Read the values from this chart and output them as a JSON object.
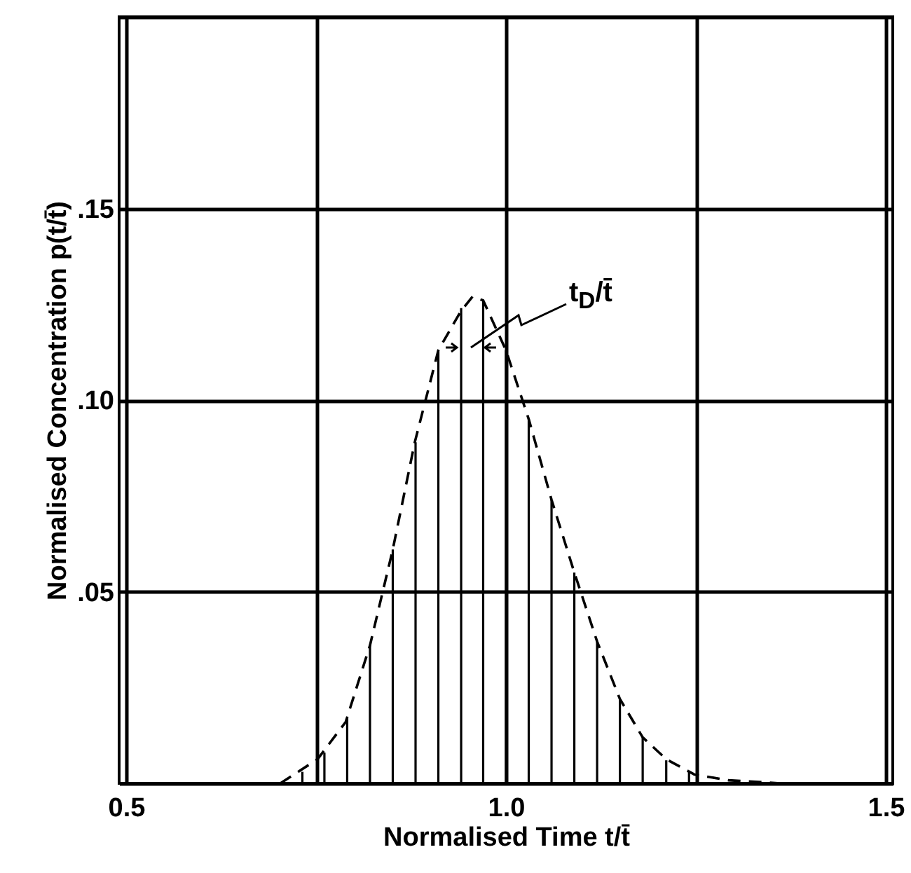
{
  "chart_data": {
    "type": "line",
    "xlabel": "Normalised Time t/t̄",
    "ylabel": "Normalised Concentration p(t/t̄)",
    "xlim": [
      0.5,
      1.5
    ],
    "ylim": [
      0,
      0.2
    ],
    "xticks": [
      0.5,
      {
        "value": 0.75,
        "label": null
      },
      {
        "value": 1,
        "label": "1.0"
      },
      {
        "value": 1.25,
        "label": null
      },
      1.5
    ],
    "yticks": [
      {
        "value": 0,
        "label": null
      },
      {
        "value": 0.05,
        "label": ".05"
      },
      {
        "value": 0.1,
        "label": ".10"
      },
      {
        "value": 0.15,
        "label": ".15"
      },
      {
        "value": 0.2,
        "label": null
      }
    ],
    "grid": true,
    "line_style": "dashed",
    "series": [
      {
        "color": "#000000",
        "x": [
          0.703,
          0.752,
          0.789,
          0.821,
          0.851,
          0.88,
          0.911,
          0.94,
          0.956,
          0.97,
          1.0,
          1.03,
          1.06,
          1.09,
          1.12,
          1.15,
          1.18,
          1.211,
          1.248,
          1.293,
          1.361
        ],
        "values": [
          0,
          0.0063,
          0.016,
          0.036,
          0.061,
          0.089,
          0.113,
          0.123,
          0.127,
          0.126,
          0.113,
          0.095,
          0.074,
          0.055,
          0.037,
          0.022,
          0.012,
          0.0063,
          0.0023,
          0.0008,
          0
        ]
      },
      {
        "type": "bar",
        "color": "#000000",
        "x": [
          0.732,
          0.761,
          0.791,
          0.821,
          0.851,
          0.881,
          0.911,
          0.941,
          0.97,
          1.0,
          1.03,
          1.06,
          1.09,
          1.12,
          1.15,
          1.18,
          1.211,
          1.241
        ],
        "values": [
          0.003,
          0.008,
          0.017,
          0.036,
          0.061,
          0.089,
          0.113,
          0.124,
          0.126,
          0.113,
          0.095,
          0.074,
          0.055,
          0.037,
          0.022,
          0.012,
          0.006,
          0.003
        ]
      }
    ],
    "annotations": [
      "t$_{D}$/t̄"
    ]
  }
}
